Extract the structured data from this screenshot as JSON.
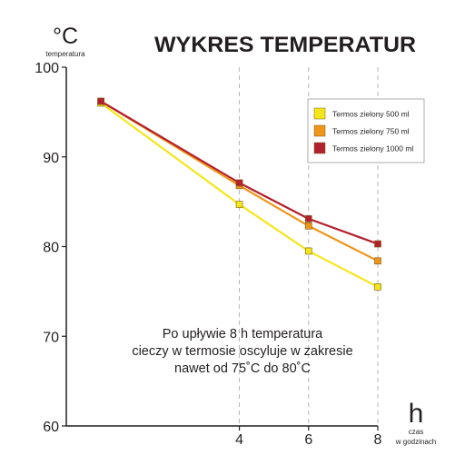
{
  "chart_data": {
    "type": "line",
    "title": "WYKRES TEMPERATUR",
    "ylabel": "°C",
    "ylabel_sub": "temperatura",
    "xlabel": "h",
    "xlabel_sub_1": "czas",
    "xlabel_sub_2": "w godzinach",
    "x": [
      0,
      4,
      6,
      8
    ],
    "x_tick_labels": [
      "",
      "4",
      "6",
      "8"
    ],
    "xlim": [
      -1,
      8
    ],
    "ylim": [
      60,
      100
    ],
    "y_ticks": [
      60,
      70,
      80,
      90,
      100
    ],
    "y_tick_labels": [
      "60",
      "70",
      "80",
      "90",
      "100"
    ],
    "grid": "vertical dashed",
    "legend_position": "top-right",
    "series": [
      {
        "name": "Termos zielony 500 ml",
        "color": "#f5e61a",
        "values": [
          96.0,
          84.7,
          79.5,
          75.5
        ]
      },
      {
        "name": "Termos zielony 750 ml",
        "color": "#ef9519",
        "values": [
          96.2,
          86.8,
          82.3,
          78.4
        ]
      },
      {
        "name": "Termos zielony 1000 ml",
        "color": "#b3202e",
        "values": [
          96.2,
          87.1,
          83.1,
          80.3
        ]
      }
    ],
    "annotation": [
      "Po upływie 8 h temperatura",
      "cieczy w termosie oscyluje w zakresie",
      "nawet od 75˚C do 80˚C"
    ]
  }
}
